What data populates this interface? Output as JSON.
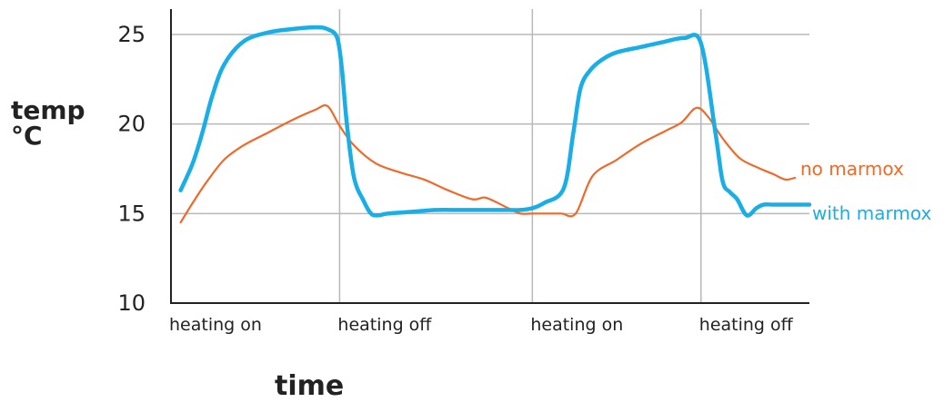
{
  "chart_data": {
    "type": "line",
    "xlabel": "time",
    "ylabel": "temp\n°C",
    "ylim": [
      10,
      25
    ],
    "yticks": [
      "25",
      "20",
      "15",
      "10"
    ],
    "ytick_values": [
      25,
      20,
      15,
      10
    ],
    "events": [
      "heating on",
      "heating off",
      "heating on",
      "heating off"
    ],
    "event_positions": [
      0,
      7.0,
      15.0,
      22.0
    ],
    "xlim": [
      0,
      26.5
    ],
    "grid": true,
    "series": [
      {
        "name": "no marmox",
        "color": "#ee6a2a",
        "x": [
          0.4,
          1.0,
          1.5,
          2.2,
          3.0,
          4.0,
          5.0,
          6.0,
          6.5,
          7.0,
          7.6,
          8.5,
          9.5,
          10.5,
          11.5,
          12.5,
          13.0,
          13.4,
          14.0,
          14.5,
          15.0,
          15.6,
          16.2,
          16.8,
          17.5,
          18.5,
          19.5,
          20.5,
          21.2,
          21.8,
          22.3,
          22.9,
          23.6,
          24.3,
          25.0,
          25.5,
          25.9
        ],
        "y": [
          14.5,
          15.8,
          16.8,
          18.0,
          18.8,
          19.5,
          20.2,
          20.8,
          21.0,
          19.9,
          18.8,
          17.8,
          17.3,
          16.9,
          16.3,
          15.8,
          15.9,
          15.7,
          15.3,
          15.0,
          15.0,
          15.0,
          15.0,
          15.0,
          17.1,
          18.0,
          18.9,
          19.6,
          20.1,
          20.9,
          20.4,
          19.2,
          18.1,
          17.6,
          17.2,
          16.9,
          17.0
        ]
      },
      {
        "name": "with marmox",
        "color": "#1aaee6",
        "x": [
          0.4,
          0.9,
          1.3,
          1.7,
          2.2,
          3.0,
          4.0,
          5.0,
          6.0,
          6.5,
          6.9,
          7.1,
          7.3,
          7.6,
          8.0,
          8.3,
          8.6,
          9.0,
          10.0,
          11.0,
          12.0,
          13.0,
          14.0,
          14.5,
          15.0,
          15.5,
          16.3,
          16.7,
          17.0,
          17.4,
          17.9,
          18.5,
          19.5,
          20.5,
          21.3,
          22.0,
          22.6,
          22.9,
          23.2,
          23.5,
          23.9,
          24.3,
          24.6,
          25.0,
          25.8,
          26.5
        ],
        "y": [
          16.3,
          17.8,
          19.5,
          21.5,
          23.3,
          24.6,
          25.1,
          25.3,
          25.4,
          25.3,
          24.8,
          23.0,
          20.0,
          17.0,
          15.7,
          15.0,
          14.9,
          15.0,
          15.1,
          15.2,
          15.2,
          15.2,
          15.2,
          15.2,
          15.3,
          15.6,
          16.4,
          19.5,
          22.0,
          23.0,
          23.6,
          24.0,
          24.3,
          24.6,
          24.8,
          24.5,
          19.5,
          16.8,
          16.2,
          15.8,
          14.9,
          15.3,
          15.5,
          15.5,
          15.5,
          15.5
        ]
      }
    ]
  }
}
